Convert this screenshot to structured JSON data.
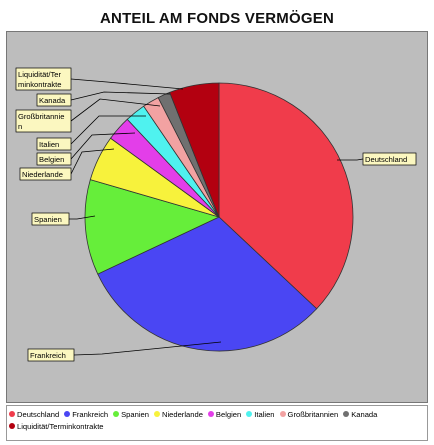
{
  "chart_data": {
    "type": "pie",
    "title": "ANTEIL AM FONDS VERMÖGEN",
    "slices": [
      {
        "label": "Deutschland",
        "value": 37.0,
        "color": "#f03c4b",
        "callout_lines": [
          "Deutschland"
        ]
      },
      {
        "label": "Frankreich",
        "value": 31.0,
        "color": "#4a46f3",
        "callout_lines": [
          "Frankreich"
        ]
      },
      {
        "label": "Spanien",
        "value": 11.5,
        "color": "#66ee3a",
        "callout_lines": [
          "Spanien"
        ]
      },
      {
        "label": "Niederlande",
        "value": 5.5,
        "color": "#f7f23c",
        "callout_lines": [
          "Niederlande"
        ]
      },
      {
        "label": "Belgien",
        "value": 3.0,
        "color": "#e33ee9",
        "callout_lines": [
          "Belgien"
        ]
      },
      {
        "label": "Italien",
        "value": 2.5,
        "color": "#4ff2ef",
        "callout_lines": [
          "Italien"
        ]
      },
      {
        "label": "Großbritannien",
        "value": 2.0,
        "color": "#f2a2a2",
        "callout_lines": [
          "Großbritannie",
          "n"
        ]
      },
      {
        "label": "Kanada",
        "value": 1.5,
        "color": "#707070",
        "callout_lines": [
          "Kanada"
        ]
      },
      {
        "label": "Liquidität/Terminkontrakte",
        "value": 6.0,
        "color": "#b30010",
        "callout_lines": [
          "Liquidität/Ter",
          "minkontrakte"
        ]
      }
    ]
  }
}
